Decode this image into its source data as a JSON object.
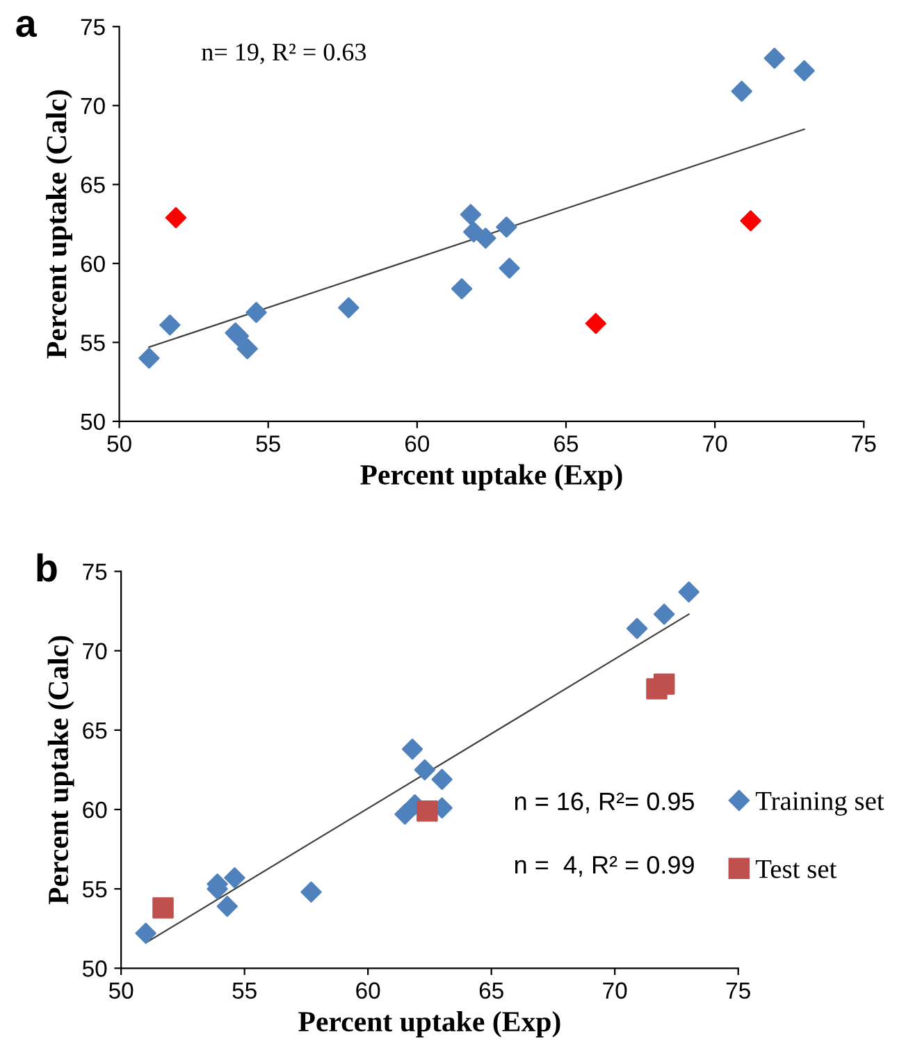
{
  "chart_data": [
    {
      "type": "scatter",
      "xlabel": "Percent uptake (Exp)",
      "ylabel": "Percent uptake (Calc)",
      "annotations": [
        "a",
        "n= 19, R² = 0.63"
      ],
      "xlim": [
        50,
        75
      ],
      "ylim": [
        50,
        75
      ],
      "xticks": [
        50,
        55,
        60,
        65,
        70,
        75
      ],
      "yticks": [
        50,
        55,
        60,
        65,
        70,
        75
      ],
      "grid": false,
      "legend": false,
      "series": [
        {
          "color": "#4f81bd",
          "marker": "diamond",
          "x": [
            51.0,
            51.7,
            53.9,
            54.0,
            54.3,
            54.6,
            57.7,
            61.5,
            61.8,
            61.9,
            62.3,
            63.0,
            63.1,
            70.9,
            72.0,
            73.0
          ],
          "values": [
            54.0,
            56.1,
            55.6,
            55.4,
            54.6,
            56.9,
            57.2,
            58.4,
            63.1,
            62.0,
            61.6,
            62.3,
            59.7,
            70.9,
            73.0,
            72.2
          ]
        },
        {
          "color": "#ff0000",
          "marker": "diamond",
          "x": [
            51.9,
            66.0,
            71.2
          ],
          "values": [
            62.9,
            56.2,
            62.7
          ]
        },
        {
          "type": "line",
          "color": "#404040",
          "marker": "none",
          "x": [
            51.0,
            73.0
          ],
          "values": [
            54.7,
            68.5
          ]
        }
      ]
    },
    {
      "type": "scatter",
      "xlabel": "Percent uptake (Exp)",
      "ylabel": "Percent uptake (Calc)",
      "annotations": [
        "b",
        "n = 16, R²= 0.95",
        "n =  4, R² = 0.99"
      ],
      "xlim": [
        50,
        75
      ],
      "ylim": [
        50,
        75
      ],
      "xticks": [
        50,
        55,
        60,
        65,
        70,
        75
      ],
      "yticks": [
        50,
        55,
        60,
        65,
        70,
        75
      ],
      "grid": false,
      "legend": "right",
      "series": [
        {
          "name": "Training set",
          "color": "#4f81bd",
          "marker": "diamond",
          "x": [
            51.0,
            53.9,
            53.9,
            54.6,
            54.3,
            57.7,
            61.5,
            61.9,
            61.8,
            62.3,
            63.0,
            63.0,
            70.9,
            72.0,
            73.0
          ],
          "values": [
            52.2,
            55.3,
            55.0,
            55.7,
            53.9,
            54.8,
            59.7,
            60.3,
            63.8,
            62.5,
            61.9,
            60.1,
            71.4,
            72.3,
            73.7
          ]
        },
        {
          "name": "Test set",
          "color": "#c0504d",
          "marker": "square",
          "x": [
            51.7,
            62.4,
            71.7,
            72.0
          ],
          "values": [
            53.8,
            59.9,
            67.6,
            67.9
          ]
        },
        {
          "type": "line",
          "color": "#404040",
          "marker": "none",
          "x": [
            51.0,
            73.0
          ],
          "values": [
            51.6,
            72.3
          ]
        }
      ]
    }
  ]
}
